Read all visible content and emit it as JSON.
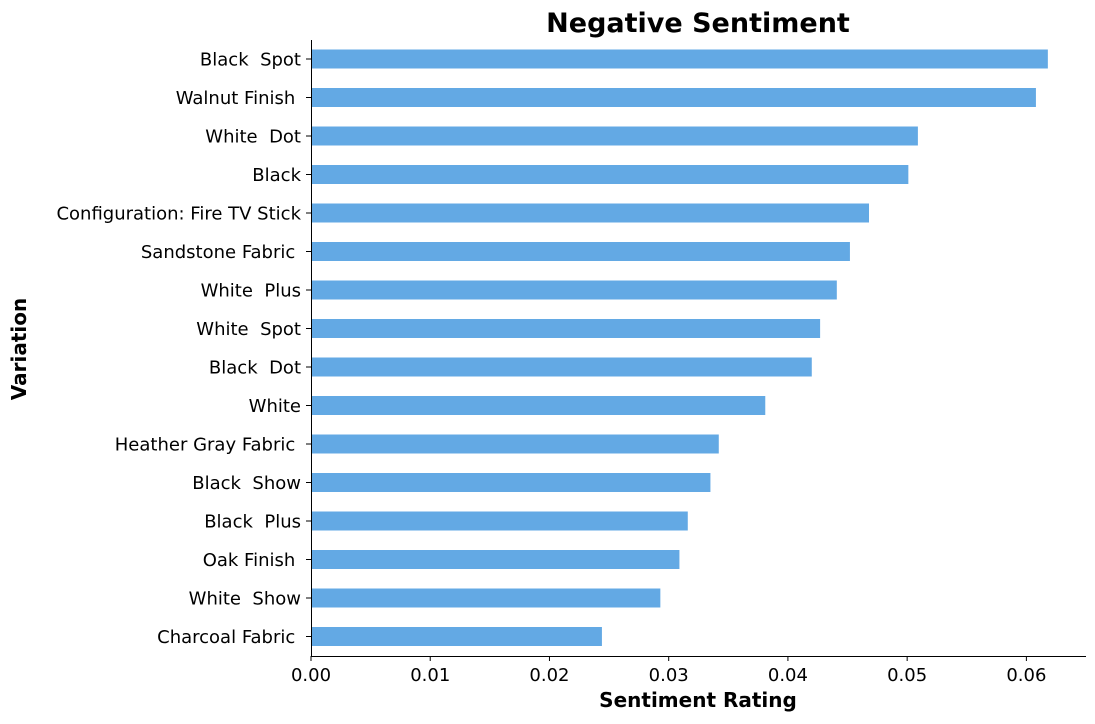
{
  "chart_data": {
    "type": "bar",
    "orientation": "horizontal",
    "title": "Negative Sentiment",
    "xlabel": "Sentiment Rating",
    "ylabel": "Variation",
    "xlim": [
      0,
      0.065
    ],
    "xticks": [
      0.0,
      0.01,
      0.02,
      0.03,
      0.04,
      0.05,
      0.06
    ],
    "xtick_labels": [
      "0.00",
      "0.01",
      "0.02",
      "0.03",
      "0.04",
      "0.05",
      "0.06"
    ],
    "grid": false,
    "bar_color": "#63a9e4",
    "categories": [
      "Black  Spot",
      "Walnut Finish ",
      "White  Dot",
      "Black",
      "Configuration: Fire TV Stick",
      "Sandstone Fabric ",
      "White  Plus",
      "White  Spot",
      "Black  Dot",
      "White",
      "Heather Gray Fabric ",
      "Black  Show",
      "Black  Plus",
      "Oak Finish ",
      "White  Show",
      "Charcoal Fabric "
    ],
    "values": [
      0.0618,
      0.0608,
      0.0509,
      0.0501,
      0.0468,
      0.0452,
      0.0441,
      0.0427,
      0.042,
      0.0381,
      0.0342,
      0.0335,
      0.0316,
      0.0309,
      0.0293,
      0.0244
    ]
  }
}
